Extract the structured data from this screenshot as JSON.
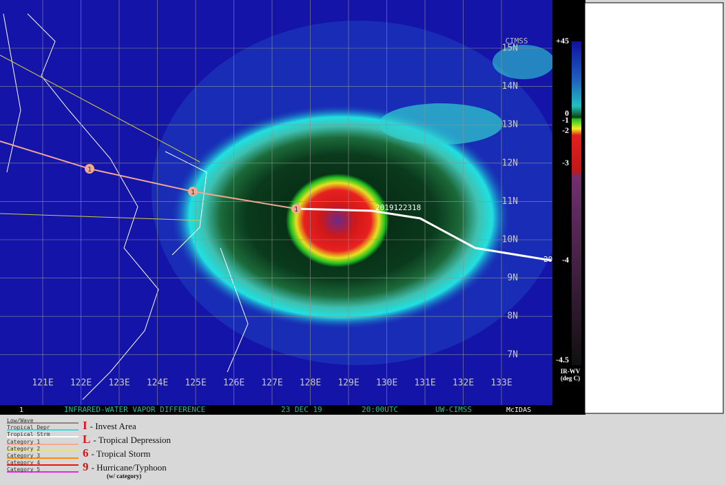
{
  "map": {
    "lon_labels": [
      "121E",
      "122E",
      "123E",
      "124E",
      "125E",
      "126E",
      "127E",
      "128E",
      "129E",
      "130E",
      "131E",
      "132E",
      "133E"
    ],
    "lat_labels": [
      "15N",
      "14N",
      "13N",
      "12N",
      "11N",
      "10N",
      "9N",
      "8N",
      "7N"
    ],
    "storm_time_label": "2019122318",
    "track_end_label": "20",
    "track_markers": [
      "1",
      "1",
      "1"
    ],
    "logo": "CIMSS"
  },
  "footer": {
    "frame": "1",
    "product": "INFRARED-WATER VAPOR DIFFERENCE",
    "date": "23 DEC 19",
    "time": "20:00UTC",
    "source": "UW-CIMSS",
    "software": "McIDAS"
  },
  "colorbar": {
    "labels": [
      "+45",
      "0",
      "-1",
      "-2",
      "-3",
      "-4",
      "-4.5"
    ],
    "title": "IR-WV",
    "units": "(deg C)"
  },
  "legend": {
    "lines": [
      {
        "label": "Low/Wave",
        "color": "#888888"
      },
      {
        "label": "Tropical Depr",
        "color": "#33dddd"
      },
      {
        "label": "Tropical Strm",
        "color": "#ffffff"
      },
      {
        "label": "Category 1",
        "color": "#f4a890"
      },
      {
        "label": "Category 2",
        "color": "#f0f020"
      },
      {
        "label": "Category 3",
        "color": "#ff8c00"
      },
      {
        "label": "Category 4",
        "color": "#ee1111"
      },
      {
        "label": "Category 5",
        "color": "#ee22ee"
      }
    ],
    "symbols": [
      {
        "glyph": "I",
        "label": "- Invest Area"
      },
      {
        "glyph": "L",
        "label": "- Tropical Depression"
      },
      {
        "glyph": "6",
        "label": "- Tropical Storm"
      },
      {
        "glyph": "9",
        "label": "- Hurricane/Typhoon"
      }
    ],
    "note": "(w/ category)"
  }
}
